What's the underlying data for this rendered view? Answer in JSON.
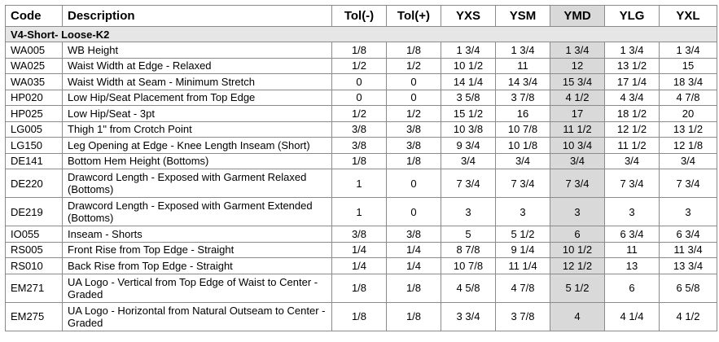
{
  "headers": {
    "code": "Code",
    "description": "Description",
    "tol_minus": "Tol(-)",
    "tol_plus": "Tol(+)",
    "sizes": [
      "YXS",
      "YSM",
      "YMD",
      "YLG",
      "YXL"
    ]
  },
  "section": "V4-Short- Loose-K2",
  "highlight_color": "#d9d9d9",
  "rows": [
    {
      "code": "WA005",
      "desc": "WB Height",
      "tol_minus": "1/8",
      "tol_plus": "1/8",
      "vals": [
        "1 3/4",
        "1 3/4",
        "1 3/4",
        "1 3/4",
        "1 3/4"
      ]
    },
    {
      "code": "WA025",
      "desc": "Waist Width at Edge - Relaxed",
      "tol_minus": "1/2",
      "tol_plus": "1/2",
      "vals": [
        "10 1/2",
        "11",
        "12",
        "13 1/2",
        "15"
      ]
    },
    {
      "code": "WA035",
      "desc": "Waist Width at Seam - Minimum Stretch",
      "tol_minus": "0",
      "tol_plus": "0",
      "vals": [
        "14 1/4",
        "14 3/4",
        "15 3/4",
        "17 1/4",
        "18 3/4"
      ]
    },
    {
      "code": "HP020",
      "desc": "Low Hip/Seat Placement from Top Edge",
      "tol_minus": "0",
      "tol_plus": "0",
      "vals": [
        "3 5/8",
        "3 7/8",
        "4 1/2",
        "4 3/4",
        "4 7/8"
      ]
    },
    {
      "code": "HP025",
      "desc": "Low Hip/Seat - 3pt",
      "tol_minus": "1/2",
      "tol_plus": "1/2",
      "vals": [
        "15 1/2",
        "16",
        "17",
        "18 1/2",
        "20"
      ]
    },
    {
      "code": "LG005",
      "desc": "Thigh 1\" from Crotch Point",
      "tol_minus": "3/8",
      "tol_plus": "3/8",
      "vals": [
        "10 3/8",
        "10 7/8",
        "11 1/2",
        "12 1/2",
        "13 1/2"
      ]
    },
    {
      "code": "LG150",
      "desc": "Leg Opening at Edge - Knee Length Inseam (Short)",
      "tol_minus": "3/8",
      "tol_plus": "3/8",
      "vals": [
        "9 3/4",
        "10 1/8",
        "10 3/4",
        "11 1/2",
        "12 1/8"
      ]
    },
    {
      "code": "DE141",
      "desc": "Bottom Hem Height (Bottoms)",
      "tol_minus": "1/8",
      "tol_plus": "1/8",
      "vals": [
        "3/4",
        "3/4",
        "3/4",
        "3/4",
        "3/4"
      ]
    },
    {
      "code": "DE220",
      "desc": "Drawcord Length - Exposed with Garment Relaxed (Bottoms)",
      "tol_minus": "1",
      "tol_plus": "0",
      "vals": [
        "7 3/4",
        "7 3/4",
        "7 3/4",
        "7 3/4",
        "7 3/4"
      ]
    },
    {
      "code": "DE219",
      "desc": "Drawcord Length - Exposed with Garment Extended (Bottoms)",
      "tol_minus": "1",
      "tol_plus": "0",
      "vals": [
        "3",
        "3",
        "3",
        "3",
        "3"
      ]
    },
    {
      "code": "IO055",
      "desc": "Inseam - Shorts",
      "tol_minus": "3/8",
      "tol_plus": "3/8",
      "vals": [
        "5",
        "5 1/2",
        "6",
        "6 3/4",
        "6 3/4"
      ]
    },
    {
      "code": "RS005",
      "desc": "Front Rise from Top Edge - Straight",
      "tol_minus": "1/4",
      "tol_plus": "1/4",
      "vals": [
        "8 7/8",
        "9 1/4",
        "10 1/2",
        "11",
        "11 3/4"
      ]
    },
    {
      "code": "RS010",
      "desc": "Back Rise from Top Edge - Straight",
      "tol_minus": "1/4",
      "tol_plus": "1/4",
      "vals": [
        "10 7/8",
        "11 1/4",
        "12 1/2",
        "13",
        "13 3/4"
      ]
    },
    {
      "code": "EM271",
      "desc": "UA Logo - Vertical from Top Edge of Waist to Center - Graded",
      "tol_minus": "1/8",
      "tol_plus": "1/8",
      "vals": [
        "4 5/8",
        "4 7/8",
        "5 1/2",
        "6",
        "6 5/8"
      ]
    },
    {
      "code": "EM275",
      "desc": "UA Logo - Horizontal from Natural Outseam to Center - Graded",
      "tol_minus": "1/8",
      "tol_plus": "1/8",
      "vals": [
        "3 3/4",
        "3 7/8",
        "4",
        "4 1/4",
        "4 1/2"
      ]
    }
  ]
}
